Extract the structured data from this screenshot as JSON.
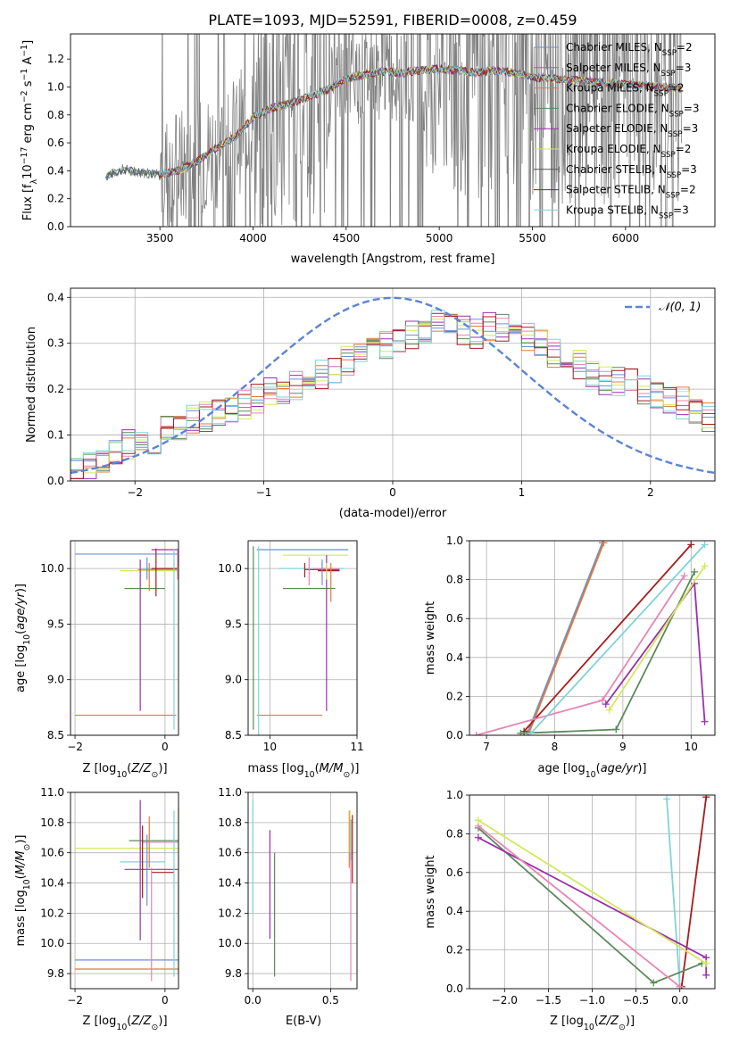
{
  "figure": {
    "title": "PLATE=1093, MJD=52591, FIBERID=0008, z=0.459"
  },
  "legend_series": [
    {
      "label": "Chabrier MILES, N",
      "sub": "SSP",
      "suffix": "=2",
      "color": "#6b8fd6"
    },
    {
      "label": "Salpeter MILES, N",
      "sub": "SSP",
      "suffix": "=3",
      "color": "#a855c8"
    },
    {
      "label": "Kroupa MILES, N",
      "sub": "SSP",
      "suffix": "=2",
      "color": "#e07b39"
    },
    {
      "label": "Chabrier ELODIE, N",
      "sub": "SSP",
      "suffix": "=3",
      "color": "#5a8a5a"
    },
    {
      "label": "Salpeter ELODIE, N",
      "sub": "SSP",
      "suffix": "=3",
      "color": "#9b2fae"
    },
    {
      "label": "Kroupa ELODIE, N",
      "sub": "SSP",
      "suffix": "=2",
      "color": "#d4e85a"
    },
    {
      "label": "Chabrier STELIB, N",
      "sub": "SSP",
      "suffix": "=3",
      "color": "#555555"
    },
    {
      "label": "Salpeter STELIB, N",
      "sub": "SSP",
      "suffix": "=2",
      "color": "#a61c1c"
    },
    {
      "label": "Kroupa STELIB, N",
      "sub": "SSP",
      "suffix": "=3",
      "color": "#7fd3d8"
    }
  ],
  "chart_data": [
    {
      "id": "spectrum",
      "type": "line",
      "xlabel": "wavelength [Angstrom, rest frame]",
      "ylabel": "Flux [f",
      "ylabel_sub": "λ",
      "ylabel_rest": "10",
      "ylabel_sup": "−17",
      "ylabel_unit": " erg cm",
      "xlim": [
        3020,
        6480
      ],
      "ylim": [
        0,
        1.38
      ],
      "xticks": [
        3500,
        4000,
        4500,
        5000,
        5500,
        6000
      ],
      "yticks": [
        0.0,
        0.2,
        0.4,
        0.6,
        0.8,
        1.0,
        1.2
      ],
      "ytick_labels": [
        "0.0",
        "0.2",
        "0.4",
        "0.6",
        "0.8",
        "1.0",
        "1.2"
      ],
      "data_curve": {
        "name": "data",
        "x_start": 3210,
        "x_end": 6300,
        "color": "#808080"
      },
      "model_continuum": [
        [
          3210,
          0.36
        ],
        [
          3300,
          0.41
        ],
        [
          3400,
          0.39
        ],
        [
          3500,
          0.37
        ],
        [
          3600,
          0.4
        ],
        [
          3700,
          0.47
        ],
        [
          3800,
          0.56
        ],
        [
          3900,
          0.64
        ],
        [
          4000,
          0.78
        ],
        [
          4100,
          0.85
        ],
        [
          4200,
          0.88
        ],
        [
          4300,
          0.93
        ],
        [
          4400,
          0.98
        ],
        [
          4500,
          1.06
        ],
        [
          4600,
          1.09
        ],
        [
          4700,
          1.11
        ],
        [
          4800,
          1.1
        ],
        [
          4900,
          1.12
        ],
        [
          5000,
          1.13
        ],
        [
          5100,
          1.12
        ],
        [
          5200,
          1.1
        ],
        [
          5300,
          1.12
        ],
        [
          5400,
          1.1
        ],
        [
          5500,
          1.07
        ],
        [
          5600,
          1.06
        ],
        [
          5700,
          1.05
        ],
        [
          5800,
          1.04
        ],
        [
          5900,
          1.03
        ],
        [
          6000,
          1.02
        ],
        [
          6100,
          1.01
        ],
        [
          6200,
          1.0
        ],
        [
          6300,
          0.99
        ]
      ]
    },
    {
      "id": "residuals",
      "type": "histogram",
      "xlabel": "(data-model)/error",
      "ylabel": "Normed distribution",
      "xlim": [
        -2.5,
        2.5
      ],
      "ylim": [
        0,
        0.42
      ],
      "xticks": [
        -2,
        -1,
        0,
        1,
        2
      ],
      "xtick_labels": [
        "−2",
        "−1",
        "0",
        "1",
        "2"
      ],
      "yticks": [
        0.0,
        0.1,
        0.2,
        0.3,
        0.4
      ],
      "ytick_labels": [
        "0.0",
        "0.1",
        "0.2",
        "0.3",
        "0.4"
      ],
      "bin_width": 0.1,
      "bins_start": -2.5,
      "hist_base": [
        0.02,
        0.03,
        0.04,
        0.06,
        0.08,
        0.1,
        0.09,
        0.12,
        0.11,
        0.13,
        0.14,
        0.15,
        0.16,
        0.17,
        0.18,
        0.19,
        0.2,
        0.21,
        0.22,
        0.23,
        0.24,
        0.26,
        0.28,
        0.29,
        0.3,
        0.31,
        0.32,
        0.33,
        0.34,
        0.35,
        0.33,
        0.32,
        0.34,
        0.33,
        0.32,
        0.31,
        0.3,
        0.28,
        0.26,
        0.25,
        0.24,
        0.22,
        0.22,
        0.21,
        0.2,
        0.19,
        0.18,
        0.17,
        0.16,
        0.14
      ],
      "normal_label": "𝒩(0, 1)",
      "normal_color": "#5b84d6"
    },
    {
      "id": "age-vs-Z",
      "type": "errorbar",
      "xlabel": "Z [log",
      "ylabel": "age  [log",
      "xlim": [
        -2.1,
        0.3
      ],
      "ylim": [
        8.5,
        10.25
      ],
      "xticks": [
        -2,
        0
      ],
      "xtick_labels": [
        "−2",
        "0"
      ],
      "yticks": [
        8.5,
        9.0,
        9.5,
        10.0
      ],
      "ytick_labels": [
        "8.5",
        "9.0",
        "9.5",
        "10.0"
      ]
    },
    {
      "id": "age-vs-mass",
      "type": "errorbar",
      "xlabel": "mass [log",
      "xlim": [
        9.75,
        11.0
      ],
      "ylim": [
        8.5,
        10.25
      ],
      "xticks": [
        10,
        11
      ],
      "xtick_labels": [
        "10",
        "11"
      ],
      "yticks": [
        8.5,
        9.0,
        9.5,
        10.0
      ],
      "ytick_labels": [
        "8.5",
        "9.0",
        "9.5",
        "10.0"
      ]
    },
    {
      "id": "weight-vs-age",
      "type": "line",
      "xlabel": "age  [log",
      "ylabel": "mass weight",
      "xlim": [
        6.75,
        10.35
      ],
      "ylim": [
        0,
        1.0
      ],
      "xticks": [
        7,
        8,
        9,
        10
      ],
      "xtick_labels": [
        "7",
        "8",
        "9",
        "10"
      ],
      "yticks": [
        0.0,
        0.2,
        0.4,
        0.6,
        0.8,
        1.0
      ],
      "ytick_labels": [
        "0.0",
        "0.2",
        "0.4",
        "0.6",
        "0.8",
        "1.0"
      ],
      "series": [
        {
          "color": "#6b8fd6",
          "points": [
            [
              7.6,
              0.01
            ],
            [
              8.7,
              0.99
            ]
          ]
        },
        {
          "color": "#e07b39",
          "points": [
            [
              7.62,
              0.01
            ],
            [
              8.72,
              0.99
            ]
          ]
        },
        {
          "color": "#a61c1c",
          "points": [
            [
              7.55,
              0.02
            ],
            [
              10.0,
              0.98
            ]
          ]
        },
        {
          "color": "#5a8a5a",
          "points": [
            [
              7.5,
              0.01
            ],
            [
              8.9,
              0.03
            ],
            [
              10.05,
              0.84
            ]
          ]
        },
        {
          "color": "#9b2fae",
          "points": [
            [
              8.75,
              0.16
            ],
            [
              10.05,
              0.78
            ],
            [
              10.2,
              0.07
            ]
          ]
        },
        {
          "color": "#e785b4",
          "points": [
            [
              6.85,
              0.0
            ],
            [
              8.7,
              0.18
            ],
            [
              9.9,
              0.82
            ]
          ]
        },
        {
          "color": "#d4e85a",
          "points": [
            [
              8.8,
              0.13
            ],
            [
              10.2,
              0.87
            ]
          ]
        },
        {
          "color": "#7fd3d8",
          "points": [
            [
              7.65,
              0.01
            ],
            [
              10.2,
              0.98
            ]
          ]
        }
      ]
    },
    {
      "id": "mass-vs-Z",
      "type": "errorbar",
      "xlabel": "Z [log",
      "ylabel": "mass [log",
      "xlim": [
        -2.1,
        0.3
      ],
      "ylim": [
        9.7,
        11.0
      ],
      "xticks": [
        -2,
        0
      ],
      "xtick_labels": [
        "−2",
        "0"
      ],
      "yticks": [
        9.8,
        10.0,
        10.2,
        10.4,
        10.6,
        10.8,
        11.0
      ],
      "ytick_labels": [
        "9.8",
        "10.0",
        "10.2",
        "10.4",
        "10.6",
        "10.8",
        "11.0"
      ]
    },
    {
      "id": "mass-vs-ebv",
      "type": "errorbar",
      "xlabel": "E(B-V)",
      "xlim": [
        -0.03,
        0.67
      ],
      "ylim": [
        9.7,
        11.0
      ],
      "xticks": [
        0.0,
        0.5
      ],
      "xtick_labels": [
        "0.0",
        "0.5"
      ],
      "yticks": [
        9.8,
        10.0,
        10.2,
        10.4,
        10.6,
        10.8,
        11.0
      ],
      "ytick_labels": [
        "9.8",
        "10.0",
        "10.2",
        "10.4",
        "10.6",
        "10.8",
        "11.0"
      ]
    },
    {
      "id": "weight-vs-Z",
      "type": "line",
      "xlabel": "Z [log",
      "ylabel": "mass weight",
      "xlim": [
        -2.4,
        0.4
      ],
      "ylim": [
        0,
        1.0
      ],
      "xticks": [
        -2.0,
        -1.5,
        -1.0,
        -0.5,
        0.0
      ],
      "xtick_labels": [
        "−2.0",
        "−1.5",
        "−1.0",
        "−0.5",
        "0.0"
      ],
      "yticks": [
        0.0,
        0.2,
        0.4,
        0.6,
        0.8,
        1.0
      ],
      "ytick_labels": [
        "0.0",
        "0.2",
        "0.4",
        "0.6",
        "0.8",
        "1.0"
      ],
      "series": [
        {
          "color": "#7fd3d8",
          "points": [
            [
              -0.15,
              0.98
            ],
            [
              0.0,
              0.01
            ]
          ]
        },
        {
          "color": "#a61c1c",
          "points": [
            [
              0.02,
              0.01
            ],
            [
              0.3,
              0.99
            ]
          ]
        },
        {
          "color": "#5a8a5a",
          "points": [
            [
              -2.3,
              0.83
            ],
            [
              -0.3,
              0.03
            ],
            [
              0.25,
              0.13
            ]
          ]
        },
        {
          "color": "#9b2fae",
          "points": [
            [
              -2.3,
              0.78
            ],
            [
              0.3,
              0.16
            ],
            [
              0.3,
              0.07
            ]
          ]
        },
        {
          "color": "#e785b4",
          "points": [
            [
              -2.3,
              0.84
            ],
            [
              0.0,
              0.01
            ]
          ]
        },
        {
          "color": "#d4e85a",
          "points": [
            [
              -2.3,
              0.87
            ],
            [
              0.3,
              0.13
            ]
          ]
        }
      ]
    }
  ]
}
